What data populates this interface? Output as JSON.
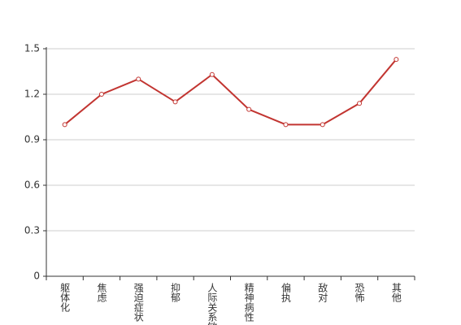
{
  "chart_data": {
    "type": "line",
    "categories": [
      "躯体化",
      "焦虑",
      "强迫症状",
      "抑郁",
      "人际关系敏感",
      "精神病性",
      "偏执",
      "敌对",
      "恐怖",
      "其他"
    ],
    "values": [
      1.0,
      1.2,
      1.3,
      1.15,
      1.33,
      1.1,
      1.0,
      1.0,
      1.14,
      1.43
    ],
    "color": "#c23531",
    "ylim": [
      0,
      1.5
    ],
    "yticks": [
      0,
      0.3,
      0.6,
      0.9,
      1.2,
      1.5
    ],
    "grid": true
  }
}
